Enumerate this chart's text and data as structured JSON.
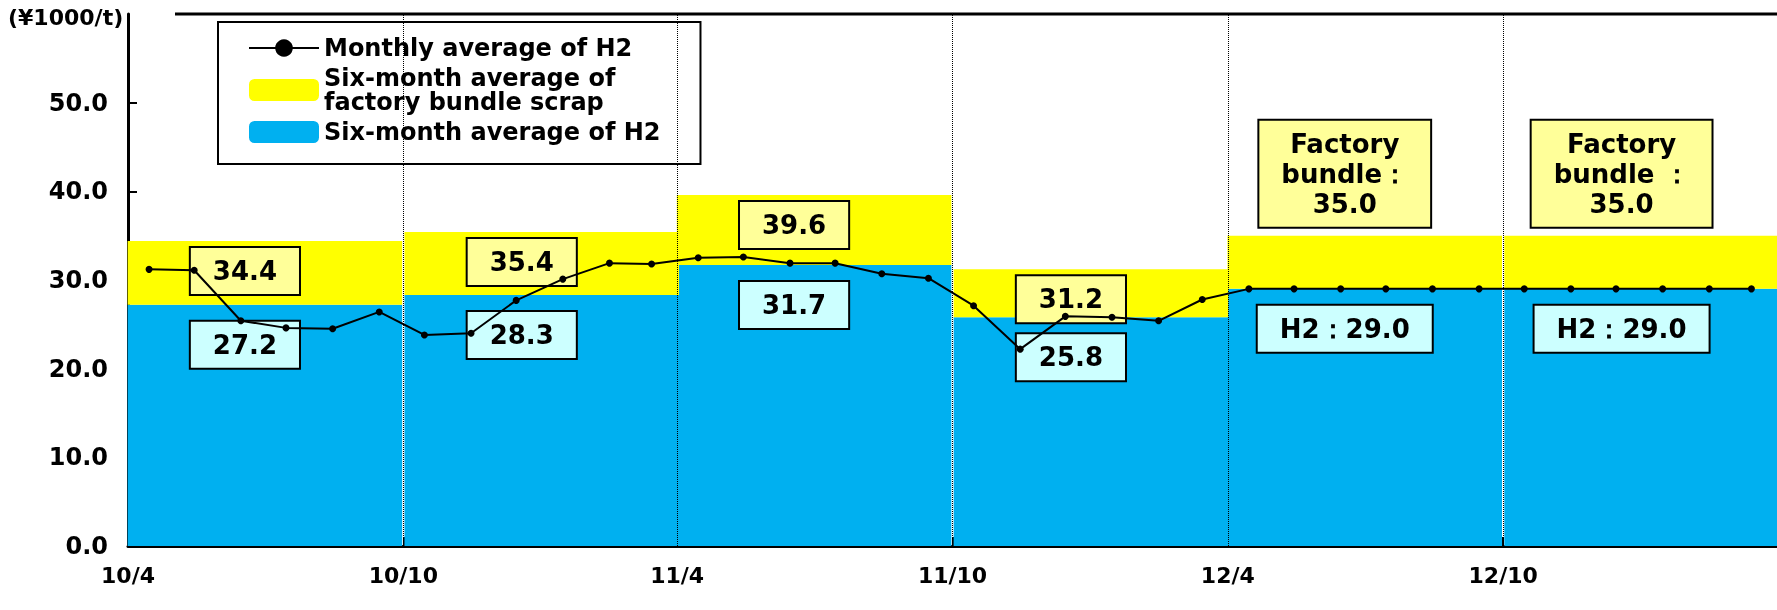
{
  "chart_data": {
    "type": "bar",
    "ylabel": "(¥1000/t)",
    "xlim": [
      "2010-04",
      "2013-04"
    ],
    "xticks": [
      {
        "value": "2010-04",
        "label": "10/4"
      },
      {
        "value": "2010-05",
        "label": null
      },
      {
        "value": "2010-06",
        "label": null
      },
      {
        "value": "2010-07",
        "label": null
      },
      {
        "value": "2010-08",
        "label": null
      },
      {
        "value": "2010-09",
        "label": null
      },
      {
        "value": "2010-10",
        "label": "10/10"
      },
      {
        "value": "2010-11",
        "label": null
      },
      {
        "value": "2010-12",
        "label": null
      },
      {
        "value": "2011-01",
        "label": null
      },
      {
        "value": "2011-02",
        "label": null
      },
      {
        "value": "2011-03",
        "label": null
      },
      {
        "value": "2011-04",
        "label": "11/4"
      },
      {
        "value": "2011-05",
        "label": null
      },
      {
        "value": "2011-06",
        "label": null
      },
      {
        "value": "2011-07",
        "label": null
      },
      {
        "value": "2011-08",
        "label": null
      },
      {
        "value": "2011-09",
        "label": null
      },
      {
        "value": "2011-10",
        "label": "11/10"
      },
      {
        "value": "2011-11",
        "label": null
      },
      {
        "value": "2011-12",
        "label": null
      },
      {
        "value": "2012-01",
        "label": null
      },
      {
        "value": "2012-02",
        "label": null
      },
      {
        "value": "2012-03",
        "label": null
      },
      {
        "value": "2012-04",
        "label": "12/4"
      },
      {
        "value": "2012-05",
        "label": null
      },
      {
        "value": "2012-06",
        "label": null
      },
      {
        "value": "2012-07",
        "label": null
      },
      {
        "value": "2012-08",
        "label": null
      },
      {
        "value": "2012-09",
        "label": null
      },
      {
        "value": "2012-10",
        "label": "12/10"
      },
      {
        "value": "2012-11",
        "label": null
      },
      {
        "value": "2012-12",
        "label": null
      },
      {
        "value": "2013-01",
        "label": null
      },
      {
        "value": "2013-02",
        "label": null
      },
      {
        "value": "2013-03",
        "label": null
      }
    ],
    "ylim": [
      0,
      60
    ],
    "yticks": [
      {
        "value": 0,
        "label": "0.0"
      },
      {
        "value": 10,
        "label": "10.0"
      },
      {
        "value": 20,
        "label": "20.0"
      },
      {
        "value": 30,
        "label": "30.0"
      },
      {
        "value": 40,
        "label": "40.0"
      },
      {
        "value": 50,
        "label": "50.0"
      }
    ],
    "grid": false,
    "legend": "top left",
    "stacked": true,
    "series": [
      {
        "name": "Six-month average of H2",
        "color": "#00b0f0",
        "x": [
          "2010-07",
          "2011-01",
          "2011-07",
          "2012-01",
          "2012-07",
          "2013-01"
        ],
        "values": [
          27.2,
          28.3,
          31.7,
          25.8,
          29.0,
          29.0
        ],
        "value_labels": [
          "27.2",
          "28.3",
          "31.7",
          "25.8",
          "H2：29.0",
          "H2：29.0"
        ]
      },
      {
        "name": "Six-month average of\nfactory bundle scrap",
        "color": "#ffff00",
        "x": [
          "2010-07",
          "2011-01",
          "2011-07",
          "2012-01",
          "2012-07",
          "2013-01"
        ],
        "values": [
          7.2,
          7.1,
          7.9,
          5.4,
          6.0,
          6.0
        ]
      },
      {
        "name": "Monthly average of H2",
        "type": "line",
        "color": "#000000",
        "marker": "circle",
        "line_style": "solid",
        "x": [
          "2010-04-15",
          "2010-05-15",
          "2010-06-15",
          "2010-07-15",
          "2010-08-15",
          "2010-09-15",
          "2010-10-15",
          "2010-11-15",
          "2010-12-15",
          "2011-01-15",
          "2011-02-15",
          "2011-03-15",
          "2011-04-15",
          "2011-05-15",
          "2011-06-15",
          "2011-07-15",
          "2011-08-15",
          "2011-09-15",
          "2011-10-15",
          "2011-11-15",
          "2011-12-15",
          "2012-01-15",
          "2012-02-15",
          "2012-03-15",
          "2012-04-15",
          "2012-05-15",
          "2012-06-15",
          "2012-07-15",
          "2012-08-15",
          "2012-09-15",
          "2012-10-15",
          "2012-11-15",
          "2012-12-15",
          "2013-01-15",
          "2013-02-15",
          "2013-03-15"
        ],
        "values": [
          31.2,
          31.1,
          25.4,
          24.6,
          24.5,
          26.4,
          23.8,
          24.0,
          27.7,
          30.1,
          31.9,
          31.8,
          32.5,
          32.6,
          31.9,
          31.9,
          30.7,
          30.2,
          27.1,
          22.2,
          25.9,
          25.8,
          25.4,
          27.8,
          29.0,
          29.0,
          29.0,
          29.0,
          29.0,
          29.0,
          29.0,
          29.0,
          29.0,
          29.0,
          29.0,
          29.0
        ]
      }
    ],
    "annotations": [
      "34.4",
      "35.4",
      "39.6",
      "31.2",
      "Factory\nbundle：\n35.0",
      "Factory\nbundle ：\n35.0"
    ],
    "ref_lines": [
      {
        "axis": "x",
        "value": "2010-10",
        "line_style": "dotted",
        "color": "#000000"
      },
      {
        "axis": "x",
        "value": "2011-04",
        "line_style": "dotted",
        "color": "#000000"
      },
      {
        "axis": "x",
        "value": "2011-10",
        "line_style": "dotted",
        "color": "#000000"
      },
      {
        "axis": "x",
        "value": "2012-04",
        "line_style": "dotted",
        "color": "#000000"
      },
      {
        "axis": "x",
        "value": "2012-10",
        "line_style": "dotted",
        "color": "#000000"
      }
    ]
  }
}
